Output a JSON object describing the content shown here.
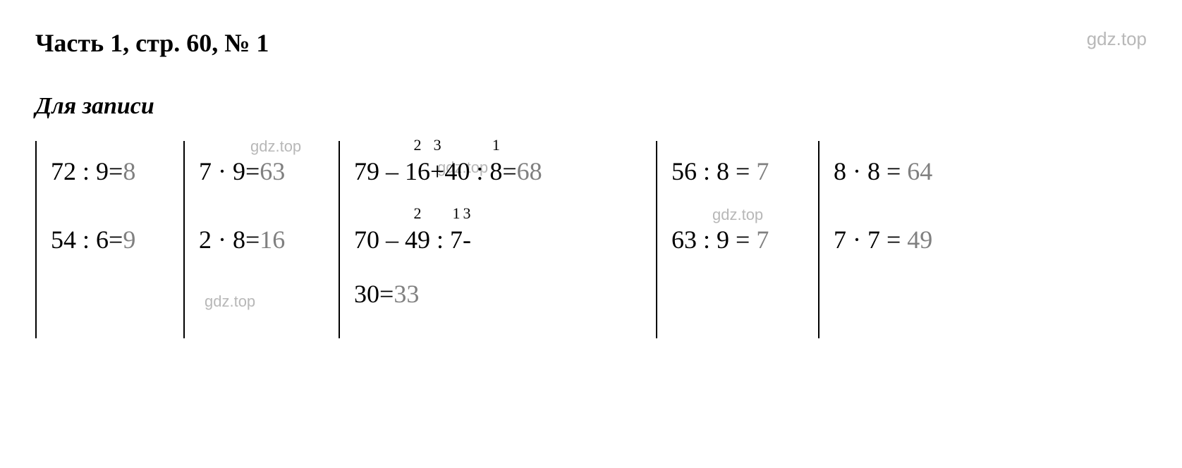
{
  "header": {
    "title": "Часть 1, стр. 60, № 1",
    "watermark": "gdz.top"
  },
  "subtitle": "Для записи",
  "watermarks": {
    "wm1": "gdz.top",
    "wm2": "gdz.top",
    "wm3": "gdz.top",
    "wm4": "gdz.top"
  },
  "table": {
    "columns": [
      {
        "rows": [
          {
            "expr": "72 : 9=",
            "result": "8"
          },
          {
            "expr": "54 : 6=",
            "result": "9"
          }
        ]
      },
      {
        "rows": [
          {
            "expr": "7 · 9=",
            "result": "63"
          },
          {
            "expr": "2 · 8=",
            "result": "16"
          }
        ]
      },
      {
        "rows": [
          {
            "parts": [
              {
                "text": "79 – "
              },
              {
                "text": "16",
                "super": "2"
              },
              {
                "text": "+"
              },
              {
                "text": "40",
                "super": "3"
              },
              {
                "text": " : "
              },
              {
                "text": "8",
                "super": "1"
              },
              {
                "text": "="
              }
            ],
            "result": "68"
          },
          {
            "parts": [
              {
                "text": "70 – "
              },
              {
                "text": "49",
                "super": "2"
              },
              {
                "text": " : "
              },
              {
                "text": "7",
                "super": "1"
              },
              {
                "text": " - ",
                "super": "3"
              }
            ],
            "line2_expr": "30=",
            "line2_result": "33"
          }
        ]
      },
      {
        "rows": [
          {
            "expr": "56 : 8 = ",
            "result": "7"
          },
          {
            "expr": "63 : 9 = ",
            "result": "7"
          }
        ]
      },
      {
        "rows": [
          {
            "expr": "8 · 8 = ",
            "result": "64"
          },
          {
            "expr": "7 · 7 = ",
            "result": "49"
          }
        ]
      }
    ]
  },
  "styling": {
    "background_color": "#ffffff",
    "text_color": "#000000",
    "result_color": "#808080",
    "watermark_color": "#b8b8b8",
    "title_fontsize": 36,
    "equation_fontsize": 36,
    "superscript_fontsize": 22,
    "border_color": "#000000",
    "border_width": 2,
    "font_family": "Times New Roman"
  }
}
